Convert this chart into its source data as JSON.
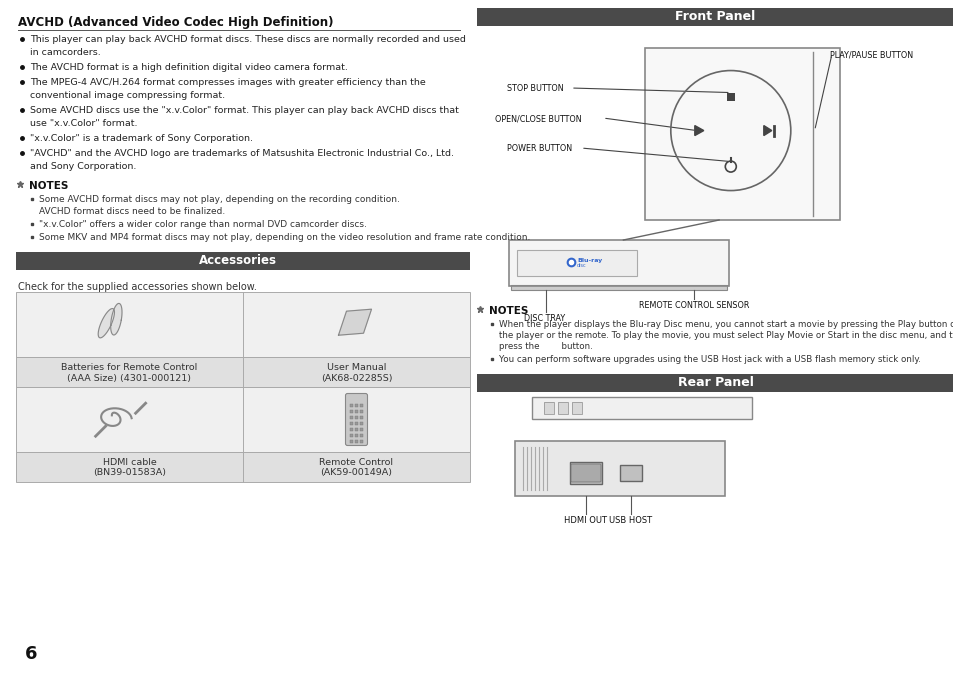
{
  "bg_color": "#ffffff",
  "header_color": "#4a4a4a",
  "header_text_color": "#ffffff",
  "section_bg": "#e8e8e8",
  "border_color": "#aaaaaa",
  "page_number": "6",
  "left_column": {
    "title": "AVCHD (Advanced Video Codec High Definition)",
    "bullets": [
      "This player can play back AVCHD format discs. These discs are normally recorded and used\n    in camcorders.",
      "The AVCHD format is a high definition digital video camera format.",
      "The MPEG-4 AVC/H.264 format compresses images with greater efficiency than the\n    conventional image compressing format.",
      "Some AVCHD discs use the \"x.v.Color\" format. This player can play back AVCHD discs that\n    use \"x.v.Color\" format.",
      "\"x.v.Color\" is a trademark of Sony Corporation.",
      "\"AVCHD\" and the AVCHD logo are trademarks of Matsushita Electronic Industrial Co., Ltd.\n    and Sony Corporation."
    ],
    "notes_title": "NOTES",
    "notes": [
      "Some AVCHD format discs may not play, depending on the recording condition.\n       AVCHD format discs need to be finalized.",
      "\"x.v.Color\" offers a wider color range than normal DVD camcorder discs.",
      "Some MKV and MP4 format discs may not play, depending on the video resolution and frame rate condition."
    ],
    "accessories_title": "Accessories",
    "accessories_subtitle": "Check for the supplied accessories shown below.",
    "table_items": [
      {
        "name": "Batteries for Remote Control\n(AAA Size) (4301-000121)",
        "col": 0,
        "row": 0
      },
      {
        "name": "User Manual\n(AK68-02285S)",
        "col": 1,
        "row": 0
      },
      {
        "name": "HDMI cable\n(BN39-01583A)",
        "col": 0,
        "row": 1
      },
      {
        "name": "Remote Control\n(AK59-00149A)",
        "col": 1,
        "row": 1
      }
    ]
  },
  "right_column": {
    "front_panel_title": "Front Panel",
    "labels": [
      "PLAY/PAUSE BUTTON",
      "STOP BUTTON",
      "OPEN/CLOSE BUTTON",
      "POWER BUTTON",
      "DISC TRAY",
      "REMOTE CONTROL SENSOR"
    ],
    "notes_title": "NOTES",
    "notes": [
      "When the player displays the Blu-ray Disc menu, you cannot start a movie by pressing the Play button on\nthe player or the remote. To play the movie, you must select Play Movie or Start in the disc menu, and then\npress the       button.",
      "You can perform software upgrades using the USB Host jack with a USB flash memory stick only."
    ],
    "rear_panel_title": "Rear Panel",
    "rear_labels": [
      "HDMI OUT",
      "USB HOST"
    ]
  }
}
